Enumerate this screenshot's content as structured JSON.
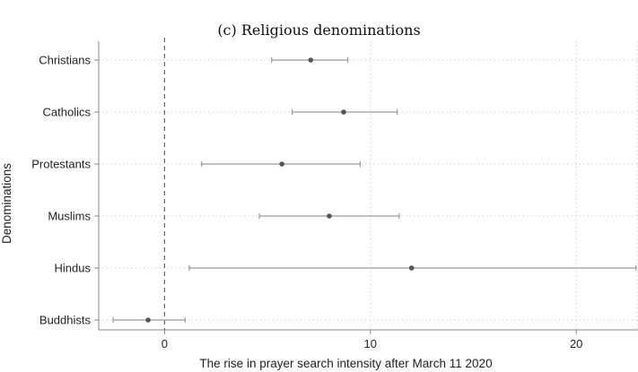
{
  "chart_data": {
    "type": "scatter",
    "title": "(c) Religious denominations",
    "xlabel": "The rise in prayer search intensity after March 11 2020",
    "ylabel": "Denominations",
    "xlim": [
      -3.2,
      23.0
    ],
    "xticks": [
      0,
      10,
      20
    ],
    "xtick_labels": [
      "0",
      "10",
      "20"
    ],
    "reference_line_x": 0,
    "grid": true,
    "categories": [
      "Christians",
      "Catholics",
      "Protestants",
      "Muslims",
      "Hindus",
      "Buddhists"
    ],
    "estimates": [
      7.1,
      8.7,
      5.7,
      8.0,
      12.0,
      -0.8
    ],
    "ci_low": [
      5.2,
      6.2,
      1.8,
      4.6,
      1.2,
      -2.5
    ],
    "ci_high": [
      8.9,
      11.3,
      9.5,
      11.4,
      22.9,
      1.0
    ],
    "colors": {
      "point": "#555555",
      "interval": "#9a9a9a",
      "grid": "#d0d0d0",
      "axis": "#888888",
      "zero_line": "#666666"
    }
  }
}
